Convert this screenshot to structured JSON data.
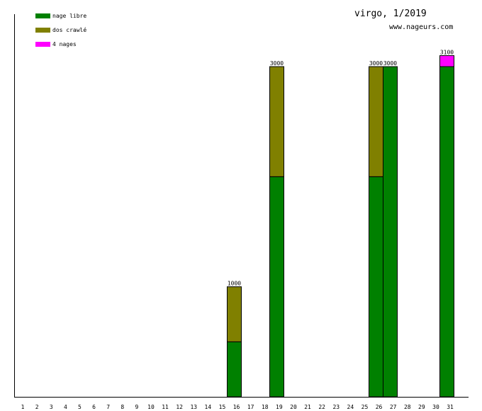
{
  "chart_data": {
    "type": "bar",
    "stacked": true,
    "title": "virgo, 1/2019",
    "subtitle": "www.nageurs.com",
    "xlabel": "",
    "ylabel": "",
    "categories": [
      "1",
      "2",
      "3",
      "4",
      "5",
      "6",
      "7",
      "8",
      "9",
      "10",
      "11",
      "12",
      "13",
      "14",
      "15",
      "16",
      "17",
      "18",
      "19",
      "20",
      "21",
      "22",
      "23",
      "24",
      "25",
      "26",
      "27",
      "28",
      "29",
      "30",
      "31"
    ],
    "series": [
      {
        "name": "nage libre",
        "color": "#008000",
        "values": [
          0,
          0,
          0,
          0,
          0,
          0,
          0,
          0,
          0,
          0,
          0,
          0,
          0,
          0,
          0,
          500,
          0,
          0,
          2000,
          0,
          0,
          0,
          0,
          0,
          0,
          2000,
          3000,
          0,
          0,
          0,
          3000
        ]
      },
      {
        "name": "dos crawlé",
        "color": "#808000",
        "values": [
          0,
          0,
          0,
          0,
          0,
          0,
          0,
          0,
          0,
          0,
          0,
          0,
          0,
          0,
          0,
          500,
          0,
          0,
          1000,
          0,
          0,
          0,
          0,
          0,
          0,
          1000,
          0,
          0,
          0,
          0,
          0
        ]
      },
      {
        "name": "4 nages",
        "color": "#ff00ff",
        "values": [
          0,
          0,
          0,
          0,
          0,
          0,
          0,
          0,
          0,
          0,
          0,
          0,
          0,
          0,
          0,
          0,
          0,
          0,
          0,
          0,
          0,
          0,
          0,
          0,
          0,
          0,
          0,
          0,
          0,
          0,
          100
        ]
      }
    ],
    "totals_labels": {
      "16": "1000",
      "19": "3000",
      "26": "3000",
      "27": "3000",
      "31": "3100"
    },
    "ylim": [
      0,
      3000
    ],
    "grid": false,
    "legend_position": "top-left"
  }
}
